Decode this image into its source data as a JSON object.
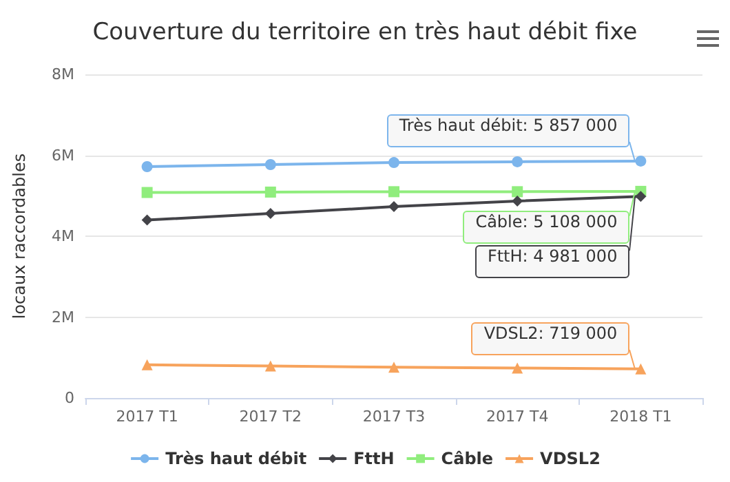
{
  "chart_data": {
    "type": "line",
    "title": "Couverture du territoire en très haut débit fixe",
    "ylabel": "locaux raccordables",
    "categories": [
      "2017 T1",
      "2017 T2",
      "2017 T3",
      "2017 T4",
      "2018 T1"
    ],
    "series": [
      {
        "name": "Très haut débit",
        "color": "#7cb5ec",
        "marker": "circle",
        "values": [
          5720000,
          5770000,
          5820000,
          5840000,
          5857000
        ]
      },
      {
        "name": "FttH",
        "color": "#434348",
        "marker": "diamond",
        "values": [
          4400000,
          4560000,
          4730000,
          4870000,
          4981000
        ]
      },
      {
        "name": "Câble",
        "color": "#90ed7d",
        "marker": "square",
        "values": [
          5080000,
          5090000,
          5100000,
          5100000,
          5108000
        ]
      },
      {
        "name": "VDSL2",
        "color": "#f7a35c",
        "marker": "triangle",
        "values": [
          820000,
          790000,
          760000,
          740000,
          719000
        ]
      }
    ],
    "ylim": [
      0,
      8000000
    ],
    "yticks": [
      {
        "value": 0,
        "label": "0"
      },
      {
        "value": 2000000,
        "label": "2M"
      },
      {
        "value": 4000000,
        "label": "4M"
      },
      {
        "value": 6000000,
        "label": "6M"
      },
      {
        "value": 8000000,
        "label": "8M"
      }
    ],
    "grid": "y",
    "legend": "bottom",
    "annotations": [
      {
        "text": "Très haut débit: 5 857 000",
        "x": "2018 T1",
        "y": 5857000
      },
      {
        "text": "Câble: 5 108 000",
        "x": "2018 T1",
        "y": 5108000
      },
      {
        "text": "FttH: 4 981 000",
        "x": "2018 T1",
        "y": 4981000
      },
      {
        "text": "VDSL2: 719 000",
        "x": "2018 T1",
        "y": 719000
      }
    ]
  }
}
